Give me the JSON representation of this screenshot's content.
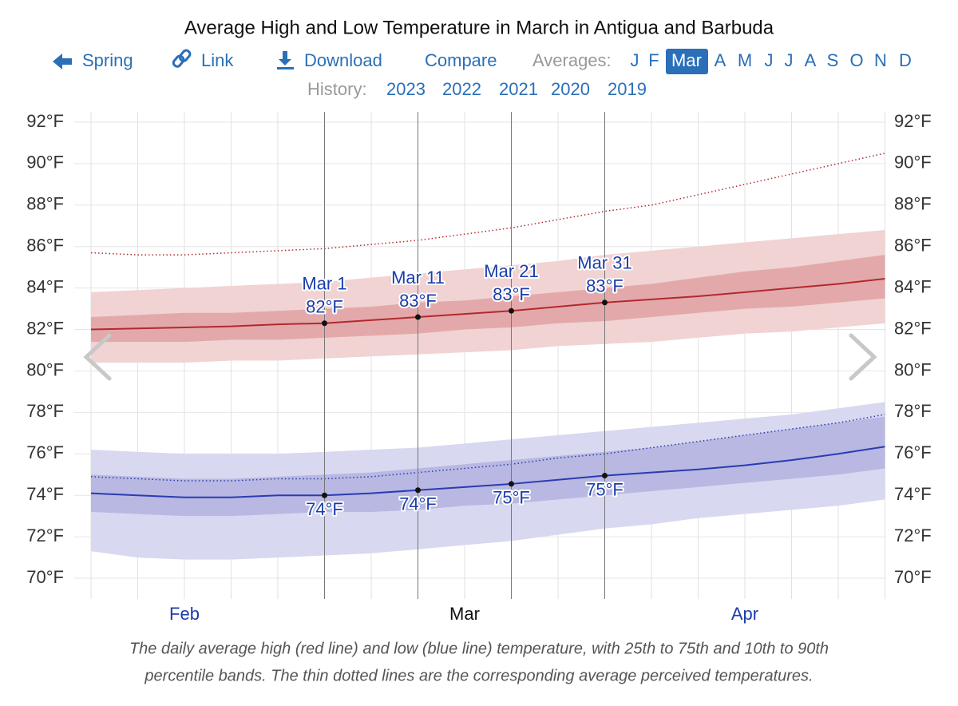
{
  "nav": {
    "links": [
      "Spring",
      "Link",
      "Download",
      "Compare"
    ],
    "averages_label": "Averages:",
    "months": [
      "J",
      "F",
      "Mar",
      "A",
      "M",
      "J",
      "J",
      "A",
      "S",
      "O",
      "N",
      "D"
    ],
    "active_month": 2,
    "history_label": "History:",
    "years": [
      "2023",
      "2022",
      "2021",
      "2020",
      "2019"
    ]
  },
  "chart_data": {
    "type": "band-line",
    "title": "Average High and Low Temperature in March in Antigua and Barbuda",
    "caption": [
      "The daily average high (red line) and low (blue line) temperature, with 25th to 75th and 10th to 90th",
      "percentile bands. The thin dotted lines are the corresponding average perceived temperatures."
    ],
    "categories": [
      null,
      null,
      "Feb",
      null,
      null,
      null,
      null,
      null,
      "Mar",
      null,
      null,
      null,
      null,
      null,
      "Apr",
      null,
      null,
      null
    ],
    "active_category": 8,
    "point_labels": [
      null,
      null,
      null,
      null,
      null,
      "Mar 1",
      null,
      "Mar 11",
      null,
      "Mar 21",
      null,
      "Mar 31",
      null,
      null,
      null,
      null,
      null,
      null
    ],
    "ylim": [
      69,
      92.5
    ],
    "yticks": [
      {
        "value": 70,
        "label": "70°F"
      },
      {
        "value": 72,
        "label": "72°F"
      },
      {
        "value": 74,
        "label": "74°F"
      },
      {
        "value": 76,
        "label": "76°F"
      },
      {
        "value": 78,
        "label": "78°F"
      },
      {
        "value": 80,
        "label": "80°F"
      },
      {
        "value": 82,
        "label": "82°F"
      },
      {
        "value": 84,
        "label": "84°F"
      },
      {
        "value": 86,
        "label": "86°F"
      },
      {
        "value": 88,
        "label": "88°F"
      },
      {
        "value": 90,
        "label": "90°F"
      },
      {
        "value": 92,
        "label": "92°F"
      }
    ],
    "grid": true,
    "series": [
      {
        "color": "#b3282d",
        "outer_band_color": "#f1d3d3",
        "inner_band_color": "#e3a9aa",
        "label_position": "above",
        "values": [
          82.0,
          82.05,
          82.1,
          82.15,
          82.25,
          82.3,
          82.45,
          82.6,
          82.75,
          82.9,
          83.1,
          83.3,
          83.45,
          83.6,
          83.8,
          84.0,
          84.2,
          84.45
        ],
        "value_labels": [
          null,
          null,
          null,
          null,
          null,
          "82°F",
          null,
          "83°F",
          null,
          "83°F",
          null,
          "83°F",
          null,
          null,
          null,
          null,
          null,
          null
        ],
        "p25": [
          81.4,
          81.4,
          81.4,
          81.5,
          81.5,
          81.6,
          81.7,
          81.8,
          82.0,
          82.1,
          82.3,
          82.4,
          82.6,
          82.8,
          83.0,
          83.1,
          83.3,
          83.5
        ],
        "p75": [
          82.6,
          82.7,
          82.8,
          82.8,
          82.9,
          83.0,
          83.1,
          83.3,
          83.4,
          83.6,
          83.8,
          84.0,
          84.2,
          84.5,
          84.8,
          85.0,
          85.3,
          85.6
        ],
        "p10": [
          80.4,
          80.4,
          80.4,
          80.5,
          80.5,
          80.6,
          80.7,
          80.8,
          80.9,
          81.0,
          81.2,
          81.3,
          81.4,
          81.6,
          81.8,
          81.9,
          82.1,
          82.3
        ],
        "p90": [
          83.8,
          83.9,
          84.0,
          84.1,
          84.2,
          84.3,
          84.5,
          84.7,
          84.9,
          85.1,
          85.3,
          85.6,
          85.8,
          86.0,
          86.2,
          86.4,
          86.6,
          86.8
        ],
        "perceived": [
          85.7,
          85.6,
          85.6,
          85.7,
          85.8,
          85.9,
          86.1,
          86.3,
          86.6,
          86.9,
          87.3,
          87.7,
          88.0,
          88.5,
          89.0,
          89.5,
          90.0,
          90.5
        ]
      },
      {
        "color": "#2a3bb2",
        "outer_band_color": "#d8d8f0",
        "inner_band_color": "#b8b8e2",
        "label_position": "below",
        "values": [
          74.1,
          74.0,
          73.9,
          73.9,
          74.0,
          74.0,
          74.1,
          74.25,
          74.4,
          74.55,
          74.75,
          74.95,
          75.1,
          75.25,
          75.45,
          75.7,
          76.0,
          76.35
        ],
        "value_labels": [
          null,
          null,
          null,
          null,
          null,
          "74°F",
          null,
          "74°F",
          null,
          "75°F",
          null,
          "75°F",
          null,
          null,
          null,
          null,
          null,
          null
        ],
        "p25": [
          73.2,
          73.1,
          73.0,
          73.0,
          73.1,
          73.2,
          73.2,
          73.3,
          73.5,
          73.6,
          73.8,
          74.0,
          74.2,
          74.4,
          74.6,
          74.8,
          75.0,
          75.3
        ],
        "p75": [
          75.0,
          74.9,
          74.8,
          74.8,
          74.9,
          75.0,
          75.1,
          75.3,
          75.5,
          75.7,
          75.9,
          76.1,
          76.3,
          76.6,
          76.9,
          77.2,
          77.5,
          77.8
        ],
        "p10": [
          71.3,
          71.0,
          70.9,
          70.9,
          71.0,
          71.1,
          71.2,
          71.4,
          71.6,
          71.8,
          72.1,
          72.4,
          72.6,
          72.9,
          73.1,
          73.3,
          73.5,
          73.8
        ],
        "p90": [
          76.2,
          76.1,
          76.0,
          76.0,
          76.0,
          76.1,
          76.2,
          76.3,
          76.5,
          76.7,
          76.9,
          77.1,
          77.3,
          77.5,
          77.7,
          77.9,
          78.2,
          78.5
        ],
        "perceived": [
          74.9,
          74.8,
          74.7,
          74.7,
          74.8,
          74.8,
          74.9,
          75.1,
          75.3,
          75.5,
          75.8,
          76.0,
          76.3,
          76.6,
          76.9,
          77.2,
          77.5,
          77.9
        ]
      }
    ]
  }
}
